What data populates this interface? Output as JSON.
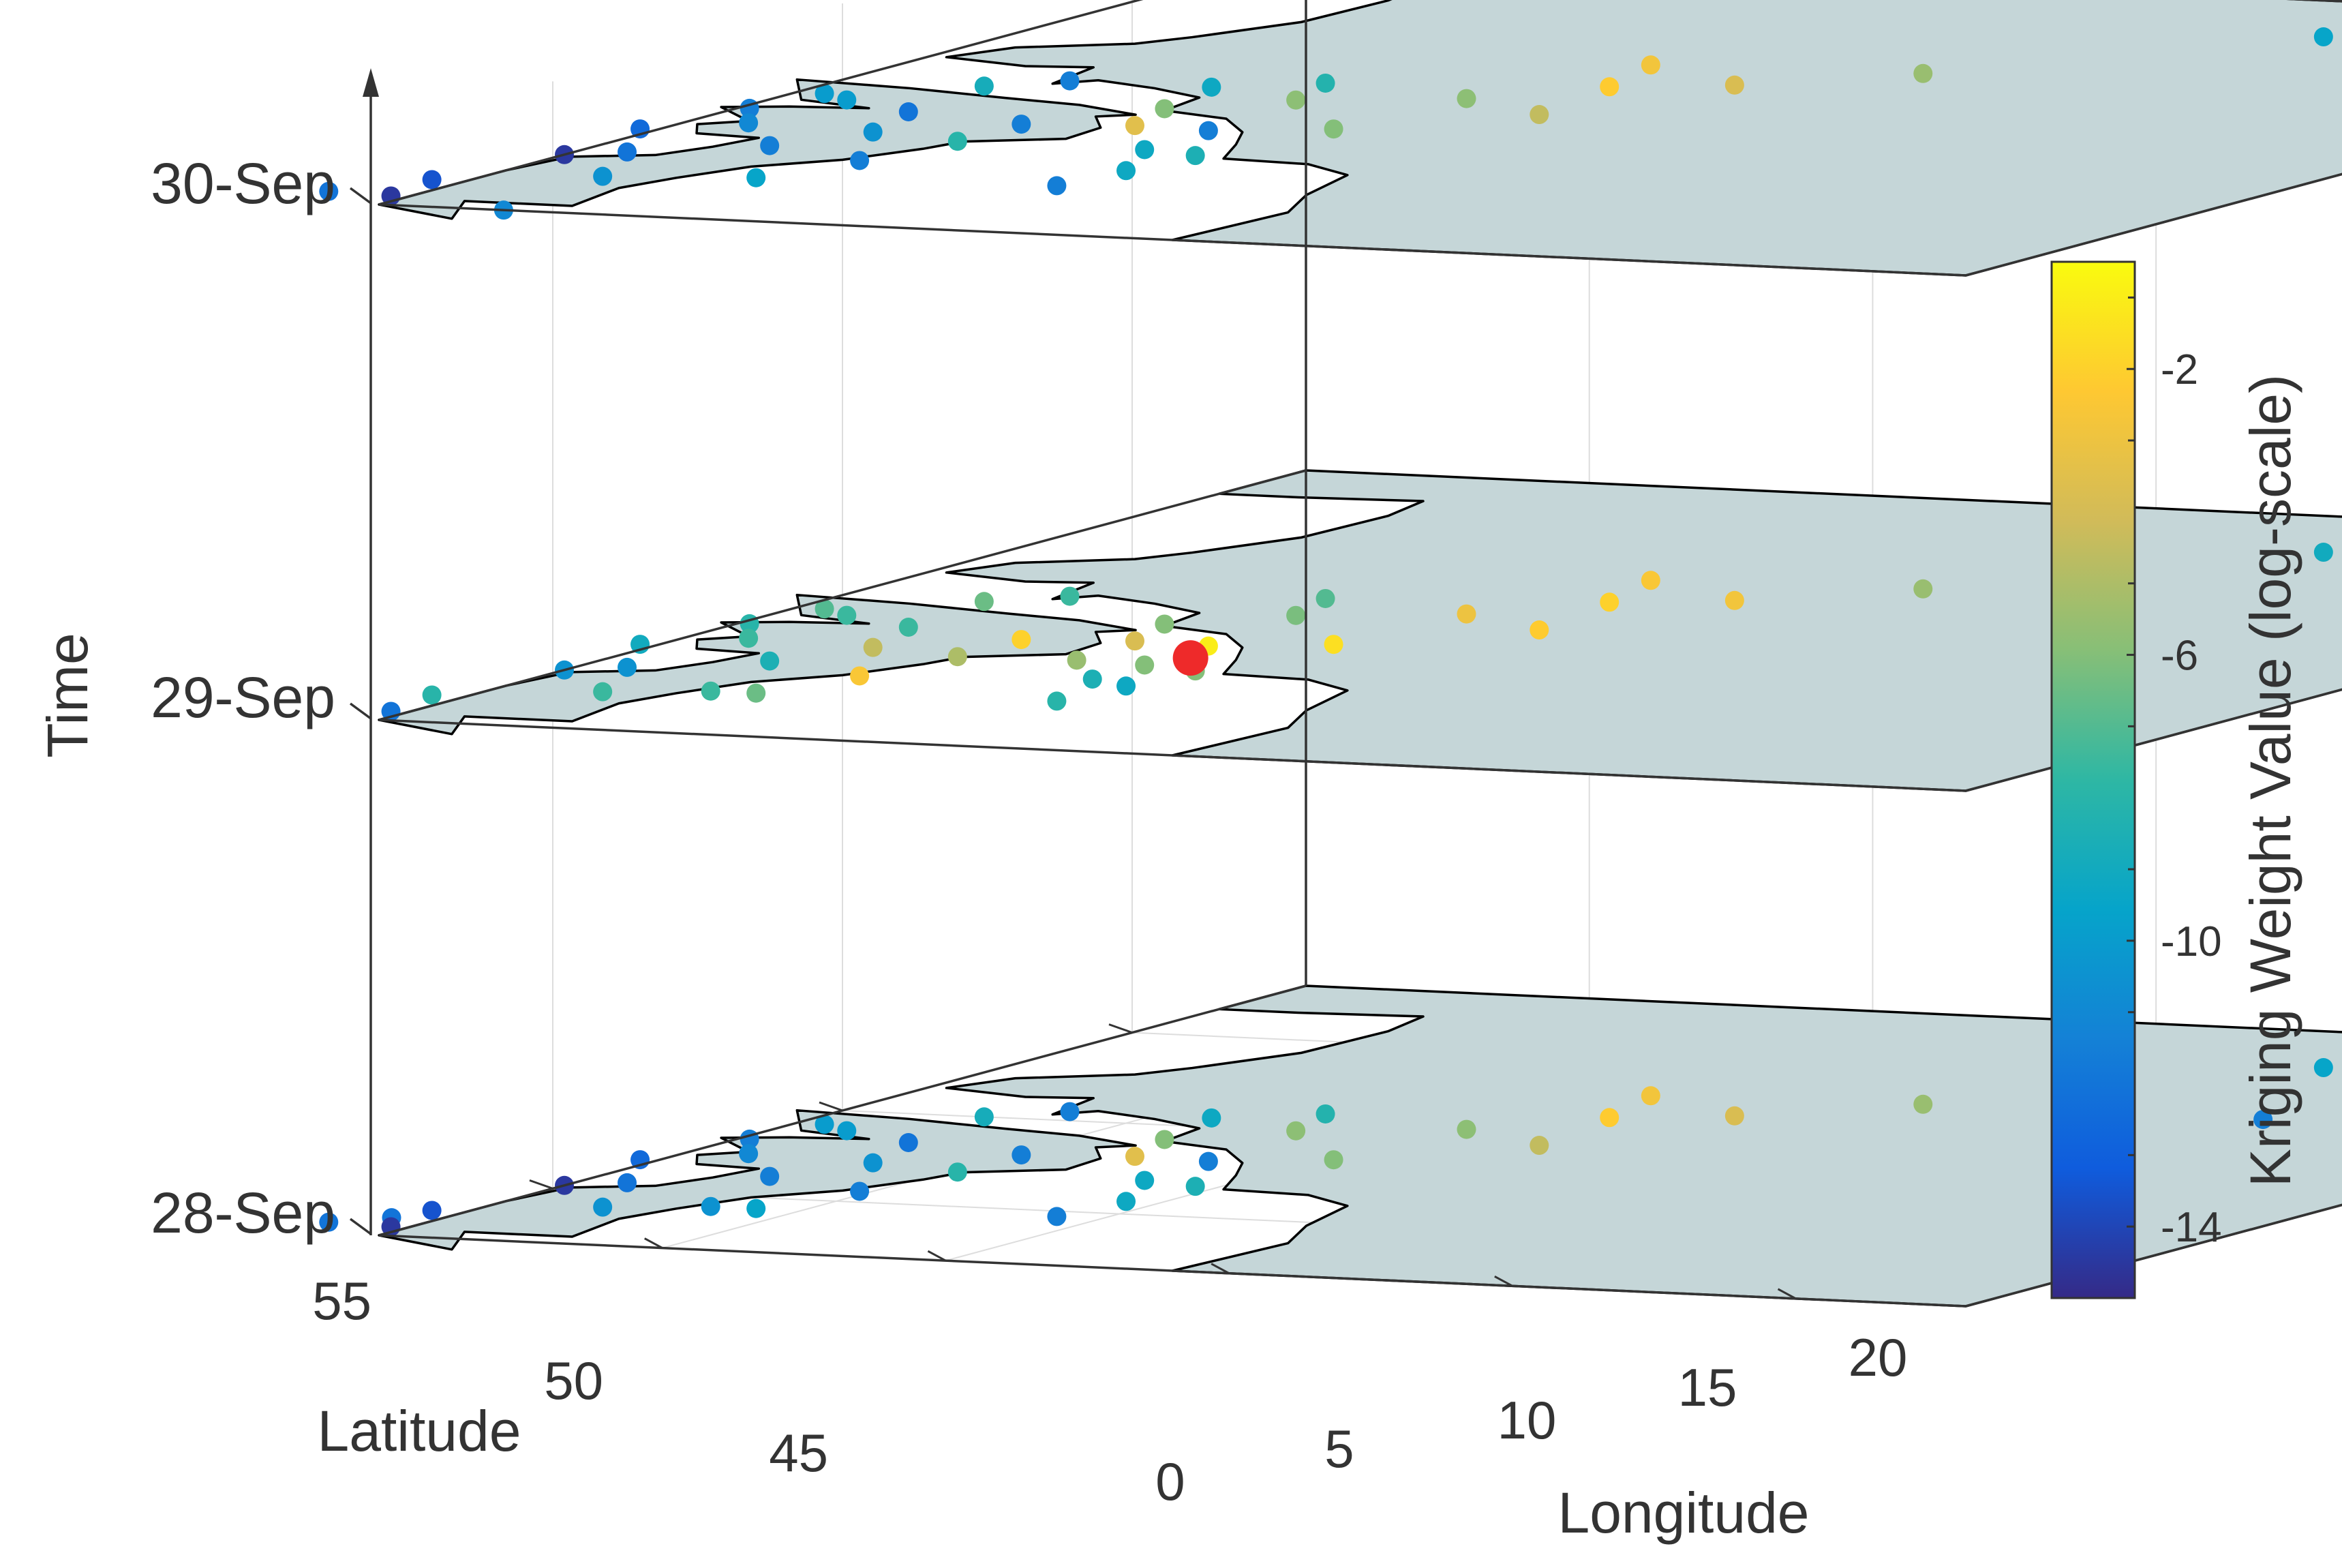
{
  "chart_data": {
    "type": "scatter",
    "subtype": "3d-stacked-map-scatter",
    "title": "",
    "xlabel": "Longitude",
    "ylabel": "Latitude",
    "zlabel": "Time",
    "xlim": [
      -5,
      23
    ],
    "ylim": [
      42,
      58
    ],
    "x_ticks": [
      "0",
      "5",
      "10",
      "15",
      "20"
    ],
    "y_ticks": [
      "45",
      "50",
      "55"
    ],
    "z_ticks": [
      "28-Sep",
      "29-Sep",
      "30-Sep"
    ],
    "map_region": "western-central Europe coastline",
    "map_fill": "#c5d6d8",
    "coastline_color": "#000000",
    "grid": true,
    "colorbar": {
      "label": "Kriging Weight Value (log-scale)",
      "ticks": [
        "-2",
        "-6",
        "-10",
        "-14"
      ],
      "tick_values": [
        -2,
        -6,
        -10,
        -14
      ],
      "range": [
        -15,
        -0.5
      ],
      "colormap": "parula",
      "colors": [
        "#352a87",
        "#0f5cdd",
        "#1481d6",
        "#06a4ca",
        "#2eb7a4",
        "#87bf77",
        "#d1bb59",
        "#fec832",
        "#f9fb0e"
      ]
    },
    "highlight_point": {
      "lon": 3.8,
      "lat": 52.6,
      "layer": "29-Sep",
      "color": "#ee2a2a"
    },
    "layers": [
      {
        "name": "28-Sep",
        "points": [
          {
            "lon": 15,
            "lat": 44.0,
            "v": -9.5
          },
          {
            "lon": 16,
            "lat": 44.2,
            "v": -12
          },
          {
            "lon": 18,
            "lat": 44.3,
            "v": -9.5
          },
          {
            "lon": 11.0,
            "lat": 47.0,
            "v": -5.5
          },
          {
            "lon": 17.0,
            "lat": 47.0,
            "v": -11.5
          },
          {
            "lon": 6.4,
            "lat": 47.2,
            "v": -2.8
          },
          {
            "lon": 8.8,
            "lat": 48.1,
            "v": -3.8
          },
          {
            "lon": 7.0,
            "lat": 48.5,
            "v": -2.2
          },
          {
            "lon": 5.5,
            "lat": 49.5,
            "v": -5.8
          },
          {
            "lon": 7.5,
            "lat": 50.2,
            "v": -4.5
          },
          {
            "lon": 5.2,
            "lat": 51.5,
            "v": -6.0
          },
          {
            "lon": 3.0,
            "lat": 50.0,
            "v": -5.8
          },
          {
            "lon": 2.5,
            "lat": 49.0,
            "v": -8.2
          },
          {
            "lon": 1.0,
            "lat": 49.5,
            "v": -9.2
          },
          {
            "lon": 1.5,
            "lat": 50.8,
            "v": -6.0
          },
          {
            "lon": 2.0,
            "lat": 51.8,
            "v": -3.5
          },
          {
            "lon": 4.6,
            "lat": 53.3,
            "v": -8.5
          },
          {
            "lon": 4.4,
            "lat": 54.3,
            "v": -9.2
          },
          {
            "lon": 4.2,
            "lat": 55.3,
            "v": -11.5
          },
          {
            "lon": 3.4,
            "lat": 51.9,
            "v": -11.5
          },
          {
            "lon": 3.5,
            "lat": 53.1,
            "v": -9.2
          },
          {
            "lon": 0.2,
            "lat": 52.0,
            "v": -11.5
          },
          {
            "lon": 0.2,
            "lat": 53.1,
            "v": -8.0
          },
          {
            "lon": -0.2,
            "lat": 54.4,
            "v": -11.5
          },
          {
            "lon": -0.8,
            "lat": 55.6,
            "v": -9.5
          },
          {
            "lon": -1.6,
            "lat": 55.6,
            "v": -10.5
          },
          {
            "lon": -1.6,
            "lat": 52.8,
            "v": -10.5
          },
          {
            "lon": -2.2,
            "lat": 51.6,
            "v": -12.0
          },
          {
            "lon": -2.4,
            "lat": 53.8,
            "v": -11.5
          },
          {
            "lon": -4.5,
            "lat": 50.8,
            "v": -10.0
          },
          {
            "lon": -2.5,
            "lat": 50.0,
            "v": -8.8
          },
          {
            "lon": -1.5,
            "lat": 49.5,
            "v": -11.5
          },
          {
            "lon": -3.8,
            "lat": 51.1,
            "v": -10.0
          },
          {
            "lon": -4.8,
            "lat": 51.8,
            "v": -11.5
          },
          {
            "lon": -4.0,
            "lat": 52.6,
            "v": -11.0
          },
          {
            "lon": -5.3,
            "lat": 53.2,
            "v": -12.5
          },
          {
            "lon": -4.2,
            "lat": 54.5,
            "v": -12.0
          },
          {
            "lon": -3.2,
            "lat": 55.9,
            "v": -10.5
          },
          {
            "lon": -5.0,
            "lat": 54.8,
            "v": -14.5
          },
          {
            "lon": -5.6,
            "lat": 56.5,
            "v": -13.5
          },
          {
            "lon": -5.8,
            "lat": 57.0,
            "v": -12.0
          },
          {
            "lon": -5.3,
            "lat": 57.5,
            "v": -14.5
          },
          {
            "lon": -6.5,
            "lat": 57.4,
            "v": -12.0
          }
        ]
      },
      {
        "name": "29-Sep",
        "points": [
          {
            "lon": 15,
            "lat": 44.0,
            "v": -9.0
          },
          {
            "lon": 16,
            "lat": 44.2,
            "v": -9.0
          },
          {
            "lon": 18,
            "lat": 44.3,
            "v": -9.0
          },
          {
            "lon": 11.0,
            "lat": 47.0,
            "v": -5.5
          },
          {
            "lon": 6.4,
            "lat": 47.2,
            "v": -2.5
          },
          {
            "lon": 8.8,
            "lat": 48.1,
            "v": -2.8
          },
          {
            "lon": 7.0,
            "lat": 48.5,
            "v": -2.0
          },
          {
            "lon": 5.5,
            "lat": 49.5,
            "v": -3.0
          },
          {
            "lon": 7.5,
            "lat": 50.2,
            "v": -2.2
          },
          {
            "lon": 5.2,
            "lat": 51.5,
            "v": -1.5
          },
          {
            "lon": 3.0,
            "lat": 50.0,
            "v": -6.2
          },
          {
            "lon": 2.5,
            "lat": 49.0,
            "v": -7.0
          },
          {
            "lon": 1.5,
            "lat": 50.8,
            "v": -6.0
          },
          {
            "lon": 2.0,
            "lat": 51.8,
            "v": -3.8
          },
          {
            "lon": 2.2,
            "lat": 53.0,
            "v": -5.5
          },
          {
            "lon": 4.6,
            "lat": 53.3,
            "v": -6.0
          },
          {
            "lon": 4.4,
            "lat": 54.3,
            "v": -9.2
          },
          {
            "lon": 4.2,
            "lat": 55.3,
            "v": -8.0
          },
          {
            "lon": 3.4,
            "lat": 51.9,
            "v": -1.0
          },
          {
            "lon": 3.5,
            "lat": 53.1,
            "v": -6.0
          },
          {
            "lon": 3.5,
            "lat": 54.0,
            "v": -8.5
          },
          {
            "lon": 0.2,
            "lat": 52.0,
            "v": -2.0
          },
          {
            "lon": 0.2,
            "lat": 53.1,
            "v": -5.0
          },
          {
            "lon": -0.2,
            "lat": 54.4,
            "v": -2.5
          },
          {
            "lon": -0.8,
            "lat": 55.6,
            "v": -6.5
          },
          {
            "lon": -1.6,
            "lat": 55.6,
            "v": -7.5
          },
          {
            "lon": -1.6,
            "lat": 52.8,
            "v": -4.5
          },
          {
            "lon": -2.2,
            "lat": 51.6,
            "v": -7.5
          },
          {
            "lon": -2.4,
            "lat": 53.8,
            "v": -8.5
          },
          {
            "lon": -4.5,
            "lat": 50.8,
            "v": -7.0
          },
          {
            "lon": -2.5,
            "lat": 50.0,
            "v": -6.5
          },
          {
            "lon": -1.5,
            "lat": 49.5,
            "v": -7.5
          },
          {
            "lon": -3.8,
            "lat": 51.1,
            "v": -7.5
          },
          {
            "lon": -4.8,
            "lat": 51.8,
            "v": -8.0
          },
          {
            "lon": -4.0,
            "lat": 52.6,
            "v": -7.5
          },
          {
            "lon": -5.3,
            "lat": 53.2,
            "v": -9.0
          },
          {
            "lon": -4.2,
            "lat": 54.5,
            "v": -10.5
          },
          {
            "lon": -3.2,
            "lat": 55.9,
            "v": -7.5
          },
          {
            "lon": -5.0,
            "lat": 54.8,
            "v": -10.5
          },
          {
            "lon": -5.6,
            "lat": 56.5,
            "v": -8.0
          },
          {
            "lon": -5.3,
            "lat": 57.5,
            "v": -12.0
          }
        ]
      },
      {
        "name": "30-Sep",
        "points": [
          {
            "lon": 15,
            "lat": 44.0,
            "v": -9.5
          },
          {
            "lon": 16,
            "lat": 44.2,
            "v": -12
          },
          {
            "lon": 18,
            "lat": 44.3,
            "v": -9.5
          },
          {
            "lon": 11.0,
            "lat": 47.0,
            "v": -5.5
          },
          {
            "lon": 6.4,
            "lat": 47.2,
            "v": -2.8
          },
          {
            "lon": 8.8,
            "lat": 48.1,
            "v": -3.8
          },
          {
            "lon": 7.0,
            "lat": 48.5,
            "v": -2.2
          },
          {
            "lon": 5.5,
            "lat": 49.5,
            "v": -5.8
          },
          {
            "lon": 7.5,
            "lat": 50.2,
            "v": -4.5
          },
          {
            "lon": 5.2,
            "lat": 51.5,
            "v": -6.0
          },
          {
            "lon": 3.0,
            "lat": 50.0,
            "v": -5.8
          },
          {
            "lon": 2.5,
            "lat": 49.0,
            "v": -8.2
          },
          {
            "lon": 1.0,
            "lat": 49.5,
            "v": -9.2
          },
          {
            "lon": 1.5,
            "lat": 50.8,
            "v": -6.0
          },
          {
            "lon": 2.0,
            "lat": 51.8,
            "v": -3.5
          },
          {
            "lon": 4.6,
            "lat": 53.3,
            "v": -8.5
          },
          {
            "lon": 4.4,
            "lat": 54.3,
            "v": -9.2
          },
          {
            "lon": 4.2,
            "lat": 55.3,
            "v": -11.5
          },
          {
            "lon": 3.4,
            "lat": 51.9,
            "v": -11.5
          },
          {
            "lon": 3.5,
            "lat": 53.1,
            "v": -9.2
          },
          {
            "lon": 0.2,
            "lat": 52.0,
            "v": -11.5
          },
          {
            "lon": 0.2,
            "lat": 53.1,
            "v": -8.0
          },
          {
            "lon": -0.2,
            "lat": 54.4,
            "v": -11.5
          },
          {
            "lon": -0.8,
            "lat": 55.6,
            "v": -9.5
          },
          {
            "lon": -1.6,
            "lat": 52.8,
            "v": -10.5
          },
          {
            "lon": -2.2,
            "lat": 51.6,
            "v": -12.0
          },
          {
            "lon": -2.4,
            "lat": 53.8,
            "v": -11.5
          },
          {
            "lon": -4.5,
            "lat": 50.8,
            "v": -10.0
          },
          {
            "lon": -2.5,
            "lat": 50.0,
            "v": -8.8
          },
          {
            "lon": -1.5,
            "lat": 49.5,
            "v": -11.5
          },
          {
            "lon": -3.8,
            "lat": 51.1,
            "v": -10.0
          },
          {
            "lon": -4.8,
            "lat": 51.8,
            "v": -11.5
          },
          {
            "lon": -4.0,
            "lat": 52.6,
            "v": -11.0
          },
          {
            "lon": -5.3,
            "lat": 53.2,
            "v": -12.5
          },
          {
            "lon": -4.2,
            "lat": 54.5,
            "v": -12.0
          },
          {
            "lon": -3.2,
            "lat": 55.9,
            "v": -10.5
          },
          {
            "lon": -5.0,
            "lat": 54.8,
            "v": -14.5
          },
          {
            "lon": -5.6,
            "lat": 56.5,
            "v": -13.5
          },
          {
            "lon": -5.3,
            "lat": 57.5,
            "v": -14.5
          },
          {
            "lon": -6.5,
            "lat": 57.4,
            "v": -12.0
          },
          {
            "lon": -2.8,
            "lat": 58.0,
            "v": -11.0
          }
        ]
      }
    ]
  }
}
